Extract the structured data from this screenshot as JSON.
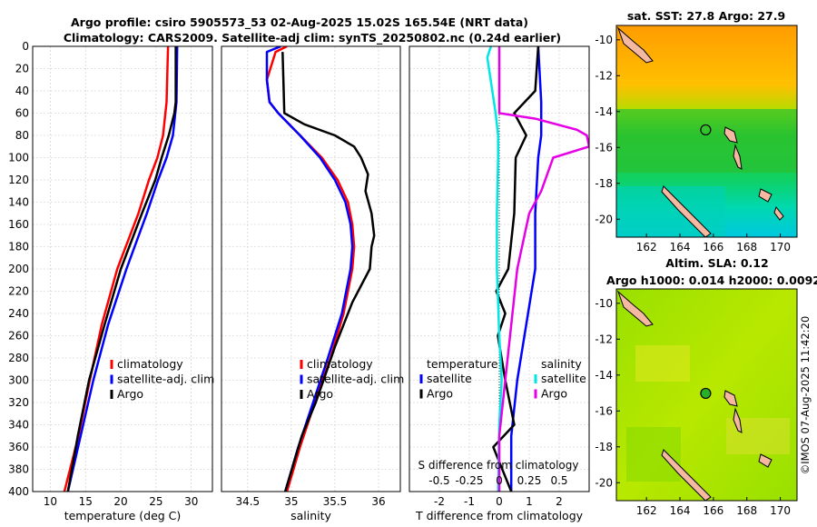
{
  "header": {
    "title_line1": "Argo profile: csiro 5905573_53 02-Aug-2025 15.02S 165.54E (NRT data)",
    "title_line2": "Climatology: CARS2009. Satellite-adj clim: synTS_20250802.nc (0.24d earlier)"
  },
  "colors": {
    "climatology": "#ff0000",
    "satellite": "#0000ff",
    "argo": "#000000",
    "sat_diff_salinity": "#00e5e5",
    "argo_diff_salinity": "#e600e6",
    "grid": "#c8c8c8"
  },
  "legends": {
    "temp": [
      "climatology",
      "satellite-adj. clim",
      "Argo"
    ],
    "sal": [
      "climatology",
      "satellite-adj. clim",
      "Argo"
    ],
    "diff_temperature_title": "temperature",
    "diff_salinity_title": "salinity",
    "diff_temperature": [
      "satellite",
      "Argo"
    ],
    "diff_salinity": [
      "satellite",
      "Argo"
    ]
  },
  "chart_data": [
    {
      "type": "line",
      "name": "temperature",
      "xlabel": "temperature (deg C)",
      "ylabel": "",
      "xlim": [
        7.5,
        33
      ],
      "ylim": [
        400,
        0
      ],
      "xticks": [
        10,
        15,
        20,
        25,
        30
      ],
      "yticks": [
        0,
        20,
        40,
        60,
        80,
        100,
        120,
        140,
        160,
        180,
        200,
        220,
        240,
        260,
        280,
        300,
        320,
        340,
        360,
        380,
        400
      ],
      "grid": true,
      "series": [
        {
          "name": "climatology",
          "depth": [
            0,
            50,
            80,
            100,
            120,
            150,
            200,
            250,
            300,
            350,
            400
          ],
          "values": [
            26.7,
            26.5,
            26.0,
            25.2,
            24.0,
            22.5,
            19.5,
            17.3,
            15.6,
            14.0,
            12.0
          ]
        },
        {
          "name": "satellite-adj. clim",
          "depth": [
            0,
            50,
            80,
            100,
            120,
            150,
            200,
            250,
            300,
            350,
            400
          ],
          "values": [
            28.0,
            27.9,
            27.4,
            26.5,
            25.3,
            23.7,
            20.8,
            18.2,
            16.1,
            14.3,
            12.5
          ]
        },
        {
          "name": "Argo",
          "depth": [
            0,
            50,
            60,
            80,
            100,
            120,
            150,
            200,
            250,
            300,
            350,
            400
          ],
          "values": [
            27.8,
            27.8,
            27.6,
            26.8,
            25.8,
            24.9,
            23.0,
            20.0,
            17.7,
            15.5,
            13.9,
            12.5
          ]
        }
      ]
    },
    {
      "type": "line",
      "name": "salinity",
      "xlabel": "salinity",
      "ylabel": "",
      "xlim": [
        34.2,
        36.25
      ],
      "ylim": [
        400,
        0
      ],
      "xticks": [
        34.5,
        35,
        35.5,
        36
      ],
      "yticks": [
        0,
        20,
        40,
        60,
        80,
        100,
        120,
        140,
        160,
        180,
        200,
        220,
        240,
        260,
        280,
        300,
        320,
        340,
        360,
        380,
        400
      ],
      "grid": true,
      "series": [
        {
          "name": "climatology",
          "depth": [
            0,
            5,
            30,
            50,
            60,
            80,
            100,
            120,
            140,
            160,
            180,
            200,
            240,
            280,
            320,
            360,
            400
          ],
          "values": [
            34.95,
            34.82,
            34.72,
            34.75,
            34.85,
            35.1,
            35.35,
            35.53,
            35.65,
            35.7,
            35.72,
            35.7,
            35.6,
            35.45,
            35.27,
            35.1,
            34.95
          ]
        },
        {
          "name": "satellite-adj. clim",
          "depth": [
            0,
            5,
            30,
            50,
            60,
            80,
            100,
            120,
            140,
            160,
            180,
            200,
            240,
            280,
            320,
            360,
            400
          ],
          "values": [
            34.88,
            34.72,
            34.72,
            34.75,
            34.85,
            35.1,
            35.33,
            35.5,
            35.62,
            35.68,
            35.7,
            35.68,
            35.58,
            35.42,
            35.25,
            35.08,
            34.93
          ]
        },
        {
          "name": "Argo",
          "depth": [
            5,
            60,
            70,
            80,
            90,
            100,
            115,
            130,
            150,
            170,
            180,
            200,
            230,
            270,
            300,
            320,
            350,
            400
          ],
          "values": [
            34.9,
            34.92,
            35.15,
            35.5,
            35.72,
            35.8,
            35.88,
            35.85,
            35.92,
            35.95,
            35.92,
            35.9,
            35.7,
            35.5,
            35.37,
            35.28,
            35.12,
            34.93
          ]
        }
      ]
    },
    {
      "type": "line",
      "name": "differences",
      "xlabel": "T difference from climatology",
      "xlabel_top": "S difference from climatology",
      "xlim": [
        -3,
        3
      ],
      "ylim": [
        400,
        0
      ],
      "xticks": [
        -2,
        -1,
        0,
        1,
        2
      ],
      "xtick_labels_s": [
        "-0.5",
        "-0.25",
        "0",
        "0.25",
        "0.5"
      ],
      "yticks": [
        0,
        20,
        40,
        60,
        80,
        100,
        120,
        140,
        160,
        180,
        200,
        220,
        240,
        260,
        280,
        300,
        320,
        340,
        360,
        380,
        400
      ],
      "grid": true,
      "series": [
        {
          "name": "temperature satellite",
          "depth": [
            0,
            50,
            60,
            80,
            100,
            150,
            200,
            250,
            300,
            350,
            400
          ],
          "values": [
            1.3,
            1.4,
            1.4,
            1.4,
            1.3,
            1.2,
            1.2,
            0.9,
            0.6,
            0.4,
            0.4
          ]
        },
        {
          "name": "temperature Argo",
          "depth": [
            0,
            40,
            60,
            80,
            100,
            150,
            200,
            220,
            240,
            260,
            300,
            340,
            360,
            400
          ],
          "values": [
            1.3,
            1.2,
            0.5,
            0.9,
            0.55,
            0.5,
            0.3,
            -0.1,
            0.2,
            -0.05,
            0.2,
            0.5,
            -0.2,
            0.4
          ]
        },
        {
          "name": "salinity satellite",
          "depth": [
            0,
            10,
            60,
            80,
            100,
            150,
            200,
            260,
            300,
            340,
            400
          ],
          "values": [
            -0.07,
            -0.1,
            -0.03,
            -0.01,
            -0.01,
            -0.02,
            -0.02,
            0.0,
            0.02,
            0.0,
            -0.01
          ]
        },
        {
          "name": "salinity Argo",
          "depth": [
            0,
            60,
            65,
            75,
            80,
            90,
            100,
            130,
            150,
            200,
            250,
            300,
            350,
            400
          ],
          "values": [
            0.0,
            0.0,
            0.3,
            0.65,
            0.73,
            0.75,
            0.45,
            0.35,
            0.25,
            0.15,
            0.1,
            0.05,
            0.0,
            0.0
          ]
        }
      ]
    },
    {
      "type": "heatmap",
      "name": "sst_map",
      "title": "sat. SST: 27.8 Argo: 27.9",
      "xlim": [
        160.2,
        171
      ],
      "ylim": [
        -21,
        -9.2
      ],
      "xticks": [
        162,
        164,
        166,
        168,
        170
      ],
      "yticks": [
        -10,
        -12,
        -14,
        -16,
        -18,
        -20
      ],
      "argo_position": [
        165.54,
        -15.02
      ]
    },
    {
      "type": "heatmap",
      "name": "sla_map",
      "title_line1": "Altim. SLA: 0.12",
      "title_line2": "Argo h1000: 0.014 h2000: 0.0092",
      "xlim": [
        160.2,
        171
      ],
      "ylim": [
        -21,
        -9.2
      ],
      "xticks": [
        162,
        164,
        166,
        168,
        170
      ],
      "yticks": [
        -10,
        -12,
        -14,
        -16,
        -18,
        -20
      ],
      "argo_position": [
        165.54,
        -15.02
      ]
    }
  ],
  "footer": {
    "credit": "©IMOS 07-Aug-2025 11:42:20"
  }
}
